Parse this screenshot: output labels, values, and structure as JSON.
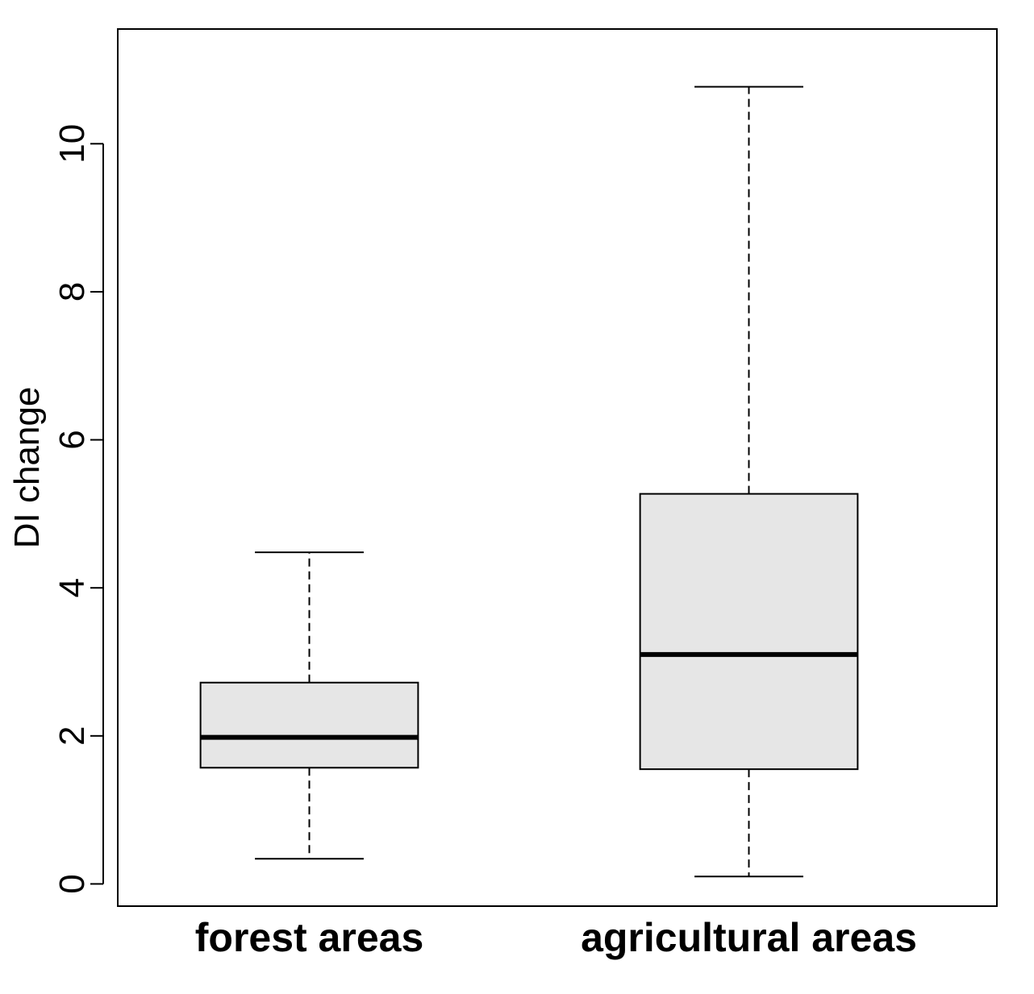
{
  "chart_data": {
    "type": "box",
    "title": "",
    "xlabel": "",
    "ylabel": "DI change",
    "ylim": [
      -0.3,
      11.55
    ],
    "yticks": [
      0,
      2,
      4,
      6,
      8,
      10
    ],
    "grid": false,
    "box_fill": "#e6e6e6",
    "line_color": "#000000",
    "categories": [
      "forest areas",
      "agricultural areas"
    ],
    "boxes": [
      {
        "category": "forest areas",
        "whisker_low": 0.34,
        "q1": 1.57,
        "median": 1.98,
        "q3": 2.72,
        "whisker_high": 4.48
      },
      {
        "category": "agricultural areas",
        "whisker_low": 0.1,
        "q1": 1.55,
        "median": 3.1,
        "q3": 5.27,
        "whisker_high": 10.77
      }
    ]
  }
}
